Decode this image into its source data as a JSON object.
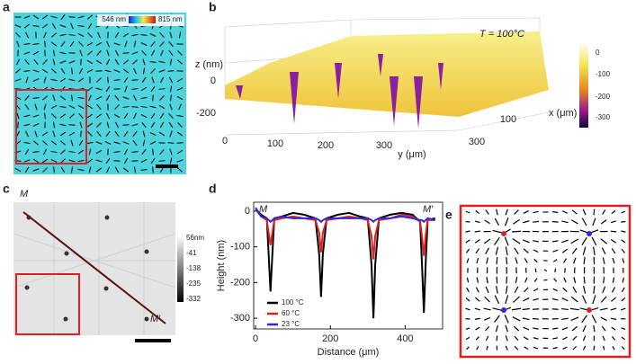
{
  "panels": {
    "a": {
      "label": "a",
      "colorbar_min": "546 nm",
      "colorbar_max": "815 nm"
    },
    "b": {
      "label": "b",
      "temperature": "T = 100°C",
      "z_label": "z (nm)",
      "z_ticks": [
        "0",
        "-200"
      ],
      "y_ticks": [
        "0",
        "100",
        "200",
        "300"
      ],
      "y_label": "y (μm)",
      "x_ticks": [
        "100",
        "300"
      ],
      "x_label": "x (μm)",
      "colorbar_ticks": [
        "0",
        "-100",
        "-200",
        "-300"
      ]
    },
    "c": {
      "label": "c",
      "start": "M",
      "end": "M′",
      "colorbar_ticks": [
        "56nm",
        "-41",
        "-138",
        "-235",
        "-332"
      ]
    },
    "e": {
      "label": "e"
    }
  },
  "chart_data": {
    "type": "line",
    "label": "d",
    "x_label": "Distance (μm)",
    "y_label": "Height (nm)",
    "annotations": [
      "M",
      "M′"
    ],
    "x": [
      0,
      15,
      30,
      35,
      40,
      45,
      50,
      70,
      100,
      130,
      160,
      170,
      175,
      180,
      190,
      220,
      250,
      280,
      300,
      310,
      315,
      320,
      330,
      360,
      390,
      420,
      440,
      445,
      450,
      455,
      460,
      480
    ],
    "series": [
      {
        "name": "100 °C",
        "color": "#000000",
        "values": [
          5,
          -10,
          -20,
          -120,
          -225,
          -120,
          -20,
          -15,
          -5,
          -10,
          -20,
          -120,
          -240,
          -120,
          -20,
          -10,
          -5,
          -15,
          -20,
          -150,
          -300,
          -150,
          -20,
          -10,
          -5,
          -10,
          -30,
          -150,
          -285,
          -140,
          -25,
          -20
        ]
      },
      {
        "name": "60 °C",
        "color": "#e0201b",
        "values": [
          5,
          -15,
          -25,
          -60,
          -95,
          -60,
          -25,
          -20,
          -15,
          -20,
          -25,
          -60,
          -115,
          -60,
          -25,
          -20,
          -15,
          -20,
          -25,
          -70,
          -135,
          -70,
          -25,
          -20,
          -10,
          -15,
          -30,
          -70,
          -125,
          -65,
          -25,
          -25
        ]
      },
      {
        "name": "23 °C",
        "color": "#2a2ae0",
        "values": [
          10,
          -15,
          -20,
          -25,
          -30,
          -25,
          -20,
          -15,
          -20,
          -20,
          -20,
          -25,
          -30,
          -25,
          -20,
          -20,
          -20,
          -20,
          -20,
          -25,
          -30,
          -25,
          -20,
          -20,
          -15,
          -20,
          -25,
          -25,
          -30,
          -25,
          -20,
          -25
        ]
      }
    ],
    "xlim": [
      -5,
      500
    ],
    "ylim": [
      -330,
      25
    ],
    "xticks": [
      0,
      200,
      400
    ],
    "yticks": [
      0,
      -100,
      -200,
      -300
    ]
  }
}
